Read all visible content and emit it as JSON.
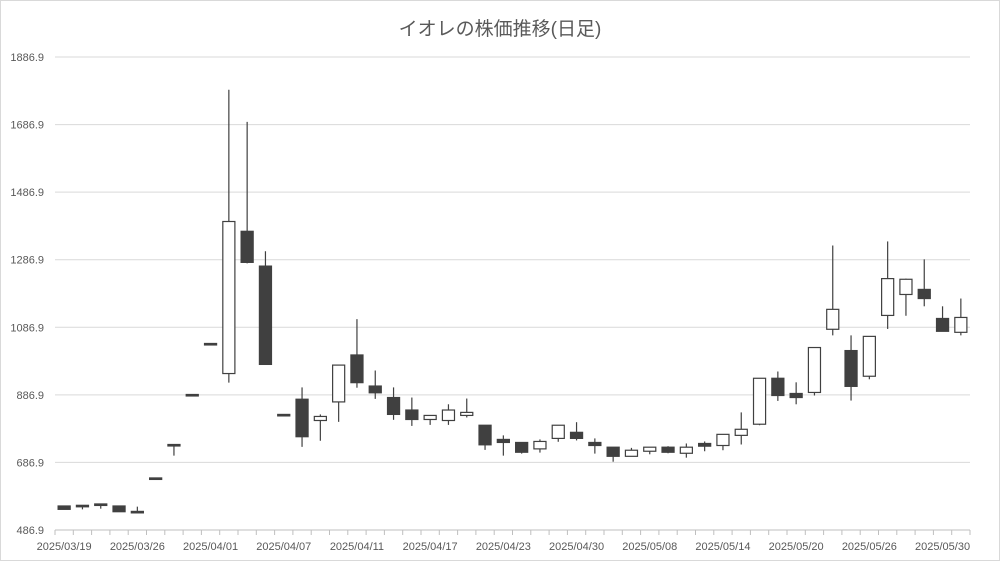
{
  "chart_data": {
    "type": "candlestick",
    "title": "イオレの株価推移(日足)",
    "xlabel": "",
    "ylabel": "",
    "ylim": [
      486.9,
      1886.9
    ],
    "yticks": [
      "486.9",
      "686.9",
      "886.9",
      "1086.9",
      "1286.9",
      "1486.9",
      "1686.9",
      "1886.9"
    ],
    "ytick_values": [
      486.9,
      686.9,
      886.9,
      1086.9,
      1286.9,
      1486.9,
      1686.9,
      1886.9
    ],
    "grid": true,
    "xtick_labels": [
      {
        "index": 0,
        "label": "2025/03/19"
      },
      {
        "index": 4,
        "label": "2025/03/26"
      },
      {
        "index": 8,
        "label": "2025/04/01"
      },
      {
        "index": 12,
        "label": "2025/04/07"
      },
      {
        "index": 16,
        "label": "2025/04/11"
      },
      {
        "index": 20,
        "label": "2025/04/17"
      },
      {
        "index": 24,
        "label": "2025/04/23"
      },
      {
        "index": 28,
        "label": "2025/04/30"
      },
      {
        "index": 32,
        "label": "2025/05/08"
      },
      {
        "index": 36,
        "label": "2025/05/14"
      },
      {
        "index": 40,
        "label": "2025/05/20"
      },
      {
        "index": 44,
        "label": "2025/05/26"
      },
      {
        "index": 48,
        "label": "2025/05/30"
      }
    ],
    "up_color": "#ffffff",
    "down_color": "#404040",
    "line_color": "#404040",
    "candles": [
      {
        "o": 558,
        "h": 558,
        "l": 548,
        "c": 548
      },
      {
        "o": 560,
        "h": 560,
        "l": 548,
        "c": 557
      },
      {
        "o": 564,
        "h": 564,
        "l": 550,
        "c": 560
      },
      {
        "o": 558,
        "h": 558,
        "l": 541,
        "c": 541
      },
      {
        "o": 542,
        "h": 556,
        "l": 538,
        "c": 538
      },
      {
        "o": 641,
        "h": 641,
        "l": 637,
        "c": 637
      },
      {
        "o": 740,
        "h": 740,
        "l": 707,
        "c": 737
      },
      {
        "o": 888,
        "h": 888,
        "l": 885,
        "c": 885
      },
      {
        "o": 1039,
        "h": 1039,
        "l": 1035,
        "c": 1035
      },
      {
        "o": 950,
        "h": 1790,
        "l": 923,
        "c": 1400
      },
      {
        "o": 1371,
        "h": 1695,
        "l": 1276,
        "c": 1279
      },
      {
        "o": 1268,
        "h": 1312,
        "l": 977,
        "c": 977
      },
      {
        "o": 829,
        "h": 829,
        "l": 826,
        "c": 826
      },
      {
        "o": 874,
        "h": 909,
        "l": 733,
        "c": 763
      },
      {
        "o": 811,
        "h": 829,
        "l": 751,
        "c": 823
      },
      {
        "o": 866,
        "h": 975,
        "l": 807,
        "c": 975
      },
      {
        "o": 1005,
        "h": 1111,
        "l": 908,
        "c": 923
      },
      {
        "o": 913,
        "h": 959,
        "l": 875,
        "c": 893
      },
      {
        "o": 879,
        "h": 909,
        "l": 813,
        "c": 829
      },
      {
        "o": 842,
        "h": 879,
        "l": 795,
        "c": 814
      },
      {
        "o": 814,
        "h": 826,
        "l": 798,
        "c": 826
      },
      {
        "o": 811,
        "h": 859,
        "l": 798,
        "c": 842
      },
      {
        "o": 826,
        "h": 876,
        "l": 820,
        "c": 835
      },
      {
        "o": 797,
        "h": 797,
        "l": 724,
        "c": 739
      },
      {
        "o": 755,
        "h": 767,
        "l": 707,
        "c": 746
      },
      {
        "o": 746,
        "h": 746,
        "l": 713,
        "c": 717
      },
      {
        "o": 727,
        "h": 755,
        "l": 716,
        "c": 749
      },
      {
        "o": 758,
        "h": 797,
        "l": 748,
        "c": 797
      },
      {
        "o": 776,
        "h": 806,
        "l": 752,
        "c": 758
      },
      {
        "o": 746,
        "h": 758,
        "l": 713,
        "c": 737
      },
      {
        "o": 732,
        "h": 732,
        "l": 689,
        "c": 705
      },
      {
        "o": 705,
        "h": 730,
        "l": 705,
        "c": 723
      },
      {
        "o": 720,
        "h": 732,
        "l": 711,
        "c": 732
      },
      {
        "o": 732,
        "h": 735,
        "l": 714,
        "c": 717
      },
      {
        "o": 714,
        "h": 743,
        "l": 701,
        "c": 732
      },
      {
        "o": 743,
        "h": 749,
        "l": 720,
        "c": 735
      },
      {
        "o": 737,
        "h": 770,
        "l": 723,
        "c": 770
      },
      {
        "o": 767,
        "h": 835,
        "l": 740,
        "c": 785
      },
      {
        "o": 800,
        "h": 936,
        "l": 797,
        "c": 936
      },
      {
        "o": 936,
        "h": 956,
        "l": 869,
        "c": 885
      },
      {
        "o": 891,
        "h": 924,
        "l": 859,
        "c": 879
      },
      {
        "o": 894,
        "h": 1027,
        "l": 885,
        "c": 1027
      },
      {
        "o": 1081,
        "h": 1329,
        "l": 1063,
        "c": 1140
      },
      {
        "o": 1018,
        "h": 1063,
        "l": 870,
        "c": 912
      },
      {
        "o": 942,
        "h": 1060,
        "l": 933,
        "c": 1060
      },
      {
        "o": 1122,
        "h": 1341,
        "l": 1082,
        "c": 1231
      },
      {
        "o": 1184,
        "h": 1231,
        "l": 1121,
        "c": 1229
      },
      {
        "o": 1199,
        "h": 1288,
        "l": 1149,
        "c": 1172
      },
      {
        "o": 1113,
        "h": 1149,
        "l": 1075,
        "c": 1075
      },
      {
        "o": 1072,
        "h": 1172,
        "l": 1063,
        "c": 1116
      }
    ]
  }
}
